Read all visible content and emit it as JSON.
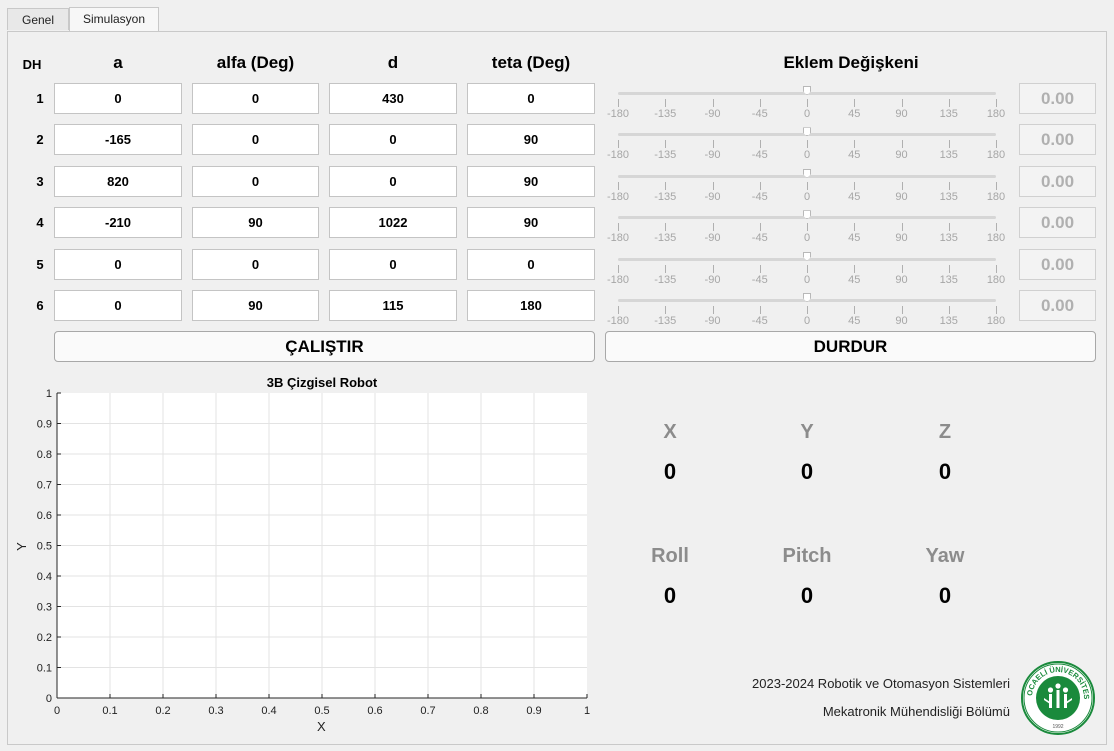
{
  "tabs": [
    {
      "label": "Genel"
    },
    {
      "label": "Simulasyon"
    }
  ],
  "dh_table": {
    "corner": "DH",
    "headers": [
      "a",
      "alfa (Deg)",
      "d",
      "teta (Deg)"
    ],
    "rows": [
      {
        "label": "1",
        "values": [
          "0",
          "0",
          "430",
          "0"
        ]
      },
      {
        "label": "2",
        "values": [
          "-165",
          "0",
          "0",
          "90"
        ]
      },
      {
        "label": "3",
        "values": [
          "820",
          "0",
          "0",
          "90"
        ]
      },
      {
        "label": "4",
        "values": [
          "-210",
          "90",
          "1022",
          "90"
        ]
      },
      {
        "label": "5",
        "values": [
          "0",
          "0",
          "0",
          "0"
        ]
      },
      {
        "label": "6",
        "values": [
          "0",
          "90",
          "115",
          "180"
        ]
      }
    ]
  },
  "joints": {
    "title": "Eklem Değişkeni",
    "tick_labels": [
      "-180",
      "-135",
      "-90",
      "-45",
      "0",
      "45",
      "90",
      "135",
      "180"
    ],
    "min": -180,
    "max": 180,
    "values": [
      0,
      0,
      0,
      0,
      0,
      0
    ],
    "displays": [
      "0.00",
      "0.00",
      "0.00",
      "0.00",
      "0.00",
      "0.00"
    ]
  },
  "buttons": {
    "run": "ÇALIŞTIR",
    "stop": "DURDUR"
  },
  "plot": {
    "title": "3B Çizgisel Robot",
    "xlabel": "X",
    "ylabel": "Y",
    "xticks": [
      "0",
      "0.1",
      "0.2",
      "0.3",
      "0.4",
      "0.5",
      "0.6",
      "0.7",
      "0.8",
      "0.9",
      "1"
    ],
    "yticks": [
      "0",
      "0.1",
      "0.2",
      "0.3",
      "0.4",
      "0.5",
      "0.6",
      "0.7",
      "0.8",
      "0.9",
      "1"
    ]
  },
  "pose": {
    "position": [
      {
        "label": "X",
        "value": "0"
      },
      {
        "label": "Y",
        "value": "0"
      },
      {
        "label": "Z",
        "value": "0"
      }
    ],
    "orientation": [
      {
        "label": "Roll",
        "value": "0"
      },
      {
        "label": "Pitch",
        "value": "0"
      },
      {
        "label": "Yaw",
        "value": "0"
      }
    ]
  },
  "footer": {
    "line1": "2023-2024 Robotik ve Otomasyon Sistemleri",
    "line2": "Mekatronik Mühendisliği Bölümü",
    "logo_text": "KOCAELİ ÜNİVERSİTESİ",
    "logo_year": "1992"
  },
  "colors": {
    "logo_green": "#1a8a3c"
  }
}
